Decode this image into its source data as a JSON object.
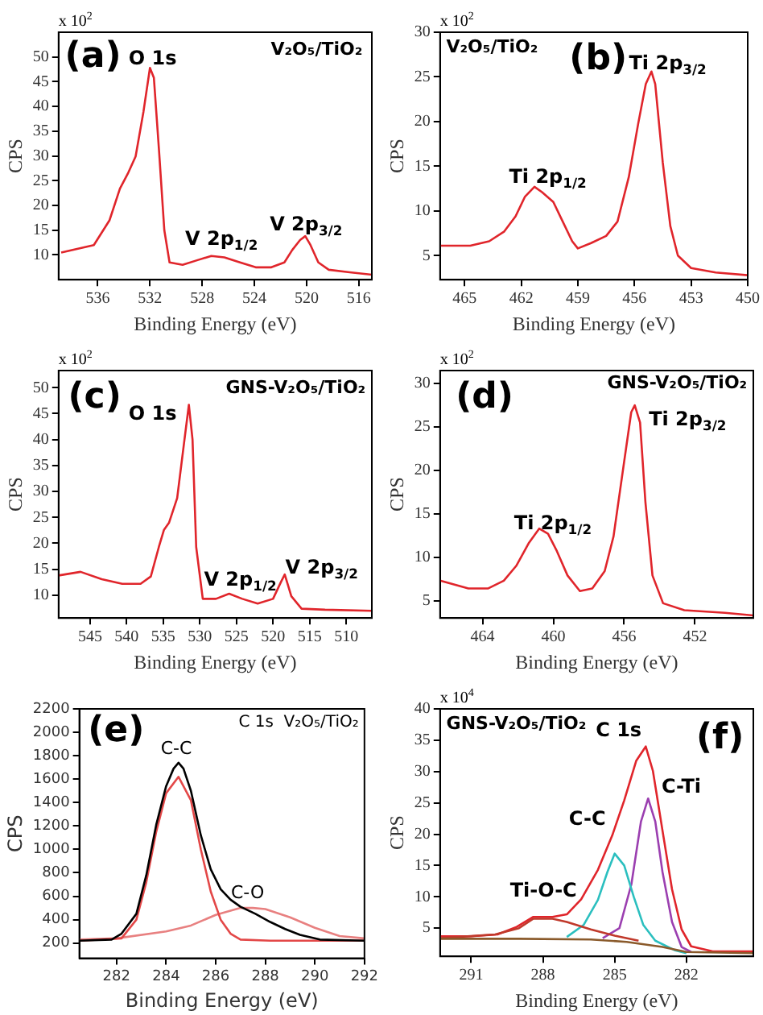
{
  "chart_data": [
    {
      "type": "line",
      "xlabel": "Binding Energy (eV)",
      "ylabel": "CPS",
      "xlim": [
        539,
        515
      ],
      "xticks": [
        536,
        532,
        528,
        524,
        520,
        516
      ],
      "ylim": [
        5,
        55
      ],
      "yticks": [
        10,
        15,
        20,
        25,
        30,
        35,
        40,
        45,
        50
      ],
      "x": [
        538.8,
        536.3,
        535.1,
        534.3,
        533.7,
        533.1,
        532.5,
        532,
        531.7,
        531.3,
        530.9,
        530.5,
        529.5,
        528.3,
        527.3,
        526.3,
        525.1,
        523.9,
        522.7,
        521.7,
        521.1,
        520.5,
        520.1,
        519.7,
        519.1,
        518.3,
        516.7,
        515
      ],
      "series": [
        {
          "color": "#e0252b",
          "values": [
            10.5,
            12,
            17,
            23.4,
            26.4,
            29.9,
            38.9,
            47.8,
            45.8,
            30.9,
            15,
            8.5,
            8,
            9,
            9.8,
            9.5,
            8.5,
            7.5,
            7.5,
            8.5,
            11,
            13,
            13.8,
            12,
            8.5,
            7,
            6.5,
            6
          ]
        }
      ],
      "annotations": [
        "(a)",
        "V₂O₅/TiO₂",
        "x 10$^{2}$",
        "O 1s",
        "V 2p$_{1/2}$",
        "V 2p$_{3/2}$"
      ]
    },
    {
      "type": "line",
      "xlabel": "Binding Energy (eV)",
      "ylabel": "CPS",
      "xlim": [
        466.3,
        450
      ],
      "xticks": [
        465,
        462,
        459,
        456,
        453,
        450
      ],
      "ylim": [
        2.3,
        30
      ],
      "yticks": [
        5,
        10,
        15,
        20,
        25,
        30
      ],
      "x": [
        466.3,
        464.7,
        463.7,
        462.9,
        462.3,
        461.8,
        461.3,
        460.9,
        460.3,
        459.8,
        459.3,
        459,
        458.3,
        457.5,
        456.9,
        456.3,
        455.8,
        455.4,
        455.1,
        454.9,
        454.5,
        454.1,
        453.7,
        453,
        451.7,
        450
      ],
      "series": [
        {
          "color": "#e0252b",
          "values": [
            6.1,
            6.1,
            6.6,
            7.7,
            9.4,
            11.6,
            12.7,
            12.1,
            11,
            8.8,
            6.6,
            5.8,
            6.4,
            7.2,
            8.8,
            13.8,
            19.8,
            24.2,
            25.6,
            24.2,
            15.4,
            8.3,
            5,
            3.6,
            3.1,
            2.8
          ]
        }
      ],
      "annotations": [
        "(b)",
        "V₂O₅/TiO₂",
        "x 10$^{2}$",
        "Ti 2p$_{3/2}$",
        "Ti 2p$_{1/2}$"
      ]
    },
    {
      "type": "line",
      "xlabel": "Binding Energy (eV)",
      "ylabel": "CPS",
      "xlim": [
        549.3,
        506.5
      ],
      "xticks": [
        545,
        540,
        535,
        530,
        525,
        520,
        515,
        510
      ],
      "ylim": [
        5.6,
        53.3
      ],
      "yticks": [
        10,
        15,
        20,
        25,
        30,
        35,
        40,
        45,
        50
      ],
      "x": [
        549.3,
        546.3,
        543.4,
        540.6,
        538.1,
        536.7,
        535.6,
        534.9,
        534.2,
        533.1,
        532.1,
        531.5,
        531,
        530.5,
        529.6,
        527.8,
        526,
        524.2,
        522.1,
        520,
        518.9,
        518.4,
        517.5,
        516.1,
        512.9,
        506.5
      ],
      "series": [
        {
          "color": "#e0252b",
          "values": [
            13.8,
            14.5,
            13.1,
            12.2,
            12.2,
            13.6,
            19.3,
            22.6,
            24,
            28.7,
            40,
            46.7,
            40,
            19.3,
            9.3,
            9.3,
            10.3,
            9.3,
            8.4,
            9.3,
            12.6,
            14,
            9.8,
            7.4,
            7.2,
            7
          ]
        }
      ],
      "annotations": [
        "(c)",
        "GNS-V₂O₅/TiO₂",
        "x 10$^{2}$",
        "O 1s",
        "V 2p$_{1/2}$",
        "V 2p$_{3/2}$"
      ]
    },
    {
      "type": "line",
      "xlabel": "Binding Energy (eV)",
      "ylabel": "CPS",
      "xlim": [
        466.4,
        448.7
      ],
      "xticks": [
        464,
        460,
        456,
        452
      ],
      "ylim": [
        3,
        31.5
      ],
      "yticks": [
        5,
        10,
        15,
        20,
        25,
        30
      ],
      "x": [
        466.4,
        464.8,
        463.7,
        462.8,
        462.1,
        461.4,
        460.8,
        460.3,
        459.8,
        459.2,
        458.5,
        457.8,
        457.1,
        456.6,
        456,
        455.6,
        455.4,
        455.1,
        454.8,
        454.4,
        453.8,
        452.6,
        450.3,
        448.7
      ],
      "series": [
        {
          "color": "#e0252b",
          "values": [
            7.3,
            6.4,
            6.4,
            7.3,
            9,
            11.6,
            13.3,
            12.7,
            10.7,
            7.9,
            6.1,
            6.4,
            8.4,
            12.4,
            21,
            26.7,
            27.5,
            25.5,
            16.4,
            7.9,
            4.7,
            3.9,
            3.6,
            3.3
          ]
        }
      ],
      "annotations": [
        "(d)",
        "GNS-V₂O₅/TiO₂",
        "x 10$^{2}$",
        "Ti 2p$_{3/2}$",
        "Ti 2p$_{1/2}$"
      ]
    },
    {
      "type": "line",
      "xlabel": "Binding Energy (eV)",
      "ylabel": "CPS",
      "xlim": [
        280.5,
        292
      ],
      "xticks": [
        282,
        284,
        286,
        288,
        290,
        292
      ],
      "ylim": [
        70,
        2200
      ],
      "yticks": [
        200,
        400,
        600,
        800,
        1000,
        1200,
        1400,
        1600,
        1800,
        2000,
        2200
      ],
      "series": [
        {
          "color": "#000000",
          "x": [
            280.5,
            281.8,
            282.2,
            282.8,
            283.2,
            283.6,
            284,
            284.3,
            284.5,
            284.7,
            285,
            285.4,
            285.8,
            286.2,
            286.6,
            287,
            287.6,
            288.2,
            288.8,
            289.4,
            290.2,
            292
          ],
          "values": [
            220,
            230,
            280,
            450,
            780,
            1210,
            1540,
            1690,
            1740,
            1690,
            1500,
            1120,
            830,
            660,
            570,
            510,
            450,
            380,
            320,
            270,
            230,
            220
          ]
        },
        {
          "color": "#e34848",
          "x": [
            280.5,
            282.2,
            282.8,
            283.2,
            283.6,
            284,
            284.5,
            285,
            285.4,
            285.8,
            286.2,
            286.6,
            287,
            288.2,
            292
          ],
          "values": [
            220,
            240,
            400,
            720,
            1150,
            1480,
            1620,
            1420,
            1000,
            640,
            400,
            280,
            230,
            220,
            220
          ]
        },
        {
          "color": "#e88080",
          "x": [
            280.5,
            282,
            284,
            285,
            286,
            287,
            287.5,
            288,
            289,
            290,
            291,
            292
          ],
          "values": [
            230,
            240,
            300,
            350,
            440,
            500,
            500,
            490,
            420,
            330,
            260,
            240
          ]
        }
      ],
      "annotations": [
        "(e)",
        "C 1s  V₂O₅/TiO₂",
        "C-C",
        "C-O"
      ]
    },
    {
      "type": "line",
      "xlabel": "Binding Energy (eV)",
      "ylabel": "CPS",
      "xlim": [
        292.3,
        279.2
      ],
      "xticks": [
        291,
        288,
        285,
        282
      ],
      "ylim": [
        0.5,
        40
      ],
      "yticks": [
        5,
        10,
        15,
        20,
        25,
        30,
        35,
        40
      ],
      "series": [
        {
          "color": "#8a5a2b",
          "x": [
            292.3,
            289,
            286,
            284.5,
            283,
            282,
            279.2
          ],
          "values": [
            3.3,
            3.3,
            3.2,
            2.8,
            2,
            1.2,
            1
          ]
        },
        {
          "color": "#c0392b",
          "x": [
            292.3,
            290,
            289,
            288.4,
            287.6,
            287,
            286,
            285,
            284
          ],
          "values": [
            3.4,
            4,
            5,
            6.5,
            6.5,
            6,
            4.8,
            3.8,
            3
          ]
        },
        {
          "color": "#2bbfbf",
          "x": [
            287,
            286.3,
            285.7,
            285.3,
            285,
            284.6,
            284.2,
            283.8,
            283.3,
            282.5,
            282
          ],
          "values": [
            3.6,
            5.5,
            9.5,
            14,
            16.9,
            15,
            10,
            5.5,
            3,
            1.5,
            1
          ]
        },
        {
          "color": "#9b3fb0",
          "x": [
            285.5,
            284.8,
            284.3,
            283.9,
            283.6,
            283.3,
            283,
            282.6,
            282.2,
            281.8
          ],
          "values": [
            3.4,
            5,
            12,
            22,
            25.7,
            22,
            14,
            6,
            2,
            1.2
          ]
        },
        {
          "color": "#e0252b",
          "x": [
            292.3,
            291,
            289.9,
            289.1,
            288.4,
            287.6,
            287,
            286.4,
            285.7,
            285.1,
            284.6,
            284.1,
            283.7,
            283.4,
            283,
            282.6,
            282.2,
            281.8,
            280.9,
            279.2
          ],
          "values": [
            3.7,
            3.7,
            4,
            5.2,
            6.8,
            6.8,
            7.2,
            9.6,
            14.3,
            19.8,
            25.4,
            31.7,
            34,
            30.1,
            20.6,
            11.2,
            4.8,
            2.1,
            1.3,
            1.3
          ]
        }
      ],
      "annotations": [
        "(f)",
        "GNS-V₂O₅/TiO₂",
        "x 10$^{4}$",
        "C 1s",
        "C-Ti",
        "C-C",
        "Ti-O-C"
      ]
    }
  ]
}
